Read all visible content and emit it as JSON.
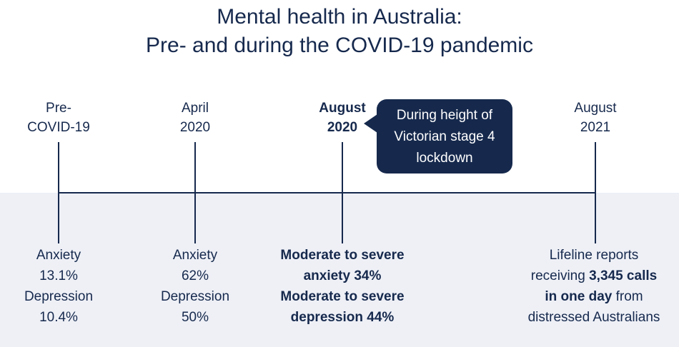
{
  "title": {
    "line1": "Mental health in Australia:",
    "line2": "Pre- and during the COVID-19 pandemic"
  },
  "timeline": [
    {
      "label_lines": [
        "Pre-",
        "COVID-19"
      ],
      "label_bold": false,
      "stats_lines": [
        "Anxiety",
        "13.1%",
        "Depression",
        "10.4%"
      ]
    },
    {
      "label_lines": [
        "April",
        "2020"
      ],
      "label_bold": false,
      "stats_lines": [
        "Anxiety",
        "62%",
        "Depression",
        "50%"
      ]
    },
    {
      "label_lines": [
        "August",
        "2020"
      ],
      "label_bold": true,
      "stats_lines": [
        "Moderate to severe",
        "anxiety 34%",
        "Moderate to severe",
        "depression 44%"
      ]
    },
    {
      "label_lines": [
        "August",
        "2021"
      ],
      "label_bold": false,
      "stats": {
        "line1": "Lifeline reports",
        "line2_pre": "receiving ",
        "line2_bold": "3,345 calls",
        "line3_bold": "in one day",
        "line3_post": " from",
        "line4": "distressed Australians"
      }
    }
  ],
  "callout": {
    "lines": [
      "During height of",
      "Victorian stage 4",
      "lockdown"
    ]
  },
  "colors": {
    "primary": "#16294d",
    "band": "#eef0f6",
    "background": "#ffffff"
  }
}
